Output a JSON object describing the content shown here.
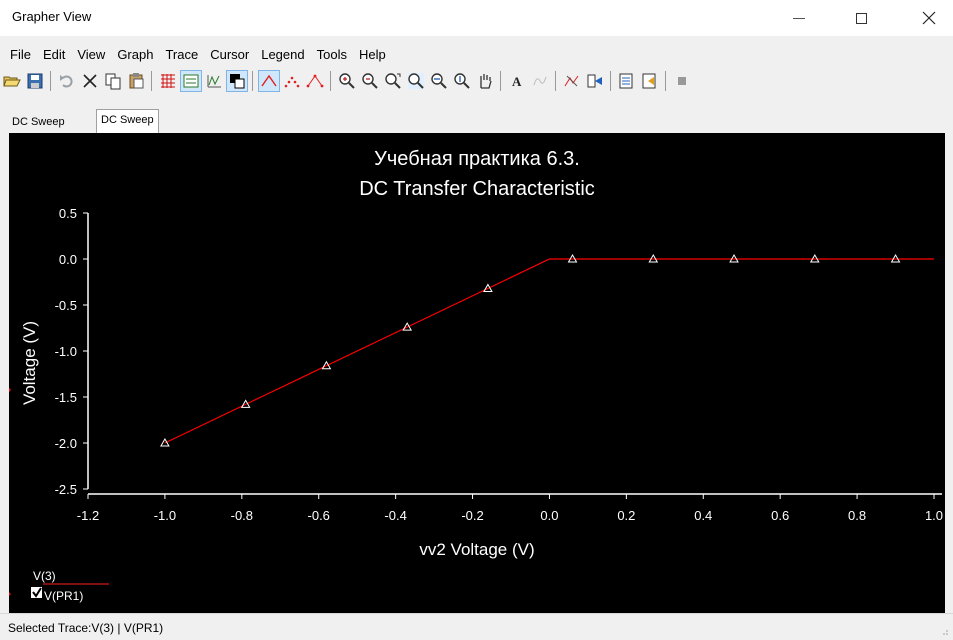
{
  "window": {
    "title": "Grapher View"
  },
  "menu": [
    "File",
    "Edit",
    "View",
    "Graph",
    "Trace",
    "Cursor",
    "Legend",
    "Tools",
    "Help"
  ],
  "toolbar": {
    "icons": [
      "open-icon",
      "save-icon",
      "sep",
      "undo-icon",
      "delete-icon",
      "copy-icon",
      "paste-icon",
      "sep",
      "grid-icon",
      "legend-box-icon",
      "axes-icon",
      "overlay-icon",
      "sep",
      "line-trace-icon",
      "points-trace-icon",
      "line-points-icon",
      "sep",
      "zoom-in-icon",
      "zoom-out-icon",
      "zoom-area-icon",
      "zoom-fit-icon",
      "zoom-x-icon",
      "zoom-y-icon",
      "pan-icon",
      "sep",
      "text-icon",
      "label-icon",
      "sep",
      "cursor-icon",
      "data-select-icon",
      "sep",
      "export-icon",
      "import-icon",
      "sep",
      "stop-icon"
    ],
    "pressed": [
      "legend-box-icon",
      "overlay-icon",
      "line-trace-icon"
    ]
  },
  "tabs": [
    "DC Sweep",
    "DC Sweep"
  ],
  "chart_data": {
    "type": "line",
    "title": "Учебная практика 6.3.",
    "subtitle": "DC Transfer Characteristic",
    "xlabel": "vv2 Voltage (V)",
    "ylabel": "Voltage (V)",
    "xlim": [
      -1.2,
      1.0
    ],
    "ylim": [
      -2.5,
      0.5
    ],
    "xticks": [
      "-1.2",
      "-1.0",
      "-0.8",
      "-0.6",
      "-0.4",
      "-0.2",
      "0.0",
      "0.2",
      "0.4",
      "0.6",
      "0.8",
      "1.0"
    ],
    "yticks": [
      "0.5",
      "0.0",
      "-0.5",
      "-1.0",
      "-1.5",
      "-2.0",
      "-2.5"
    ],
    "series": [
      {
        "name": "V(3) | V(PR1)",
        "color": "#ff0000",
        "x": [
          -1.0,
          0.0,
          1.0
        ],
        "y": [
          -2.0,
          0.0,
          0.0
        ],
        "markers": {
          "x": [
            -1.0,
            -0.79,
            -0.58,
            -0.37,
            -0.16,
            0.06,
            0.27,
            0.48,
            0.69,
            0.9
          ],
          "y": [
            -2.0,
            -1.58,
            -1.16,
            -0.74,
            -0.32,
            0.0,
            0.0,
            0.0,
            0.0,
            0.0
          ]
        }
      }
    ],
    "legend": {
      "entries": [
        "V(3)",
        "V(PR1)"
      ],
      "placement": "bottom-left"
    },
    "grid": false
  },
  "status": {
    "text": "Selected Trace:V(3) | V(PR1)"
  }
}
